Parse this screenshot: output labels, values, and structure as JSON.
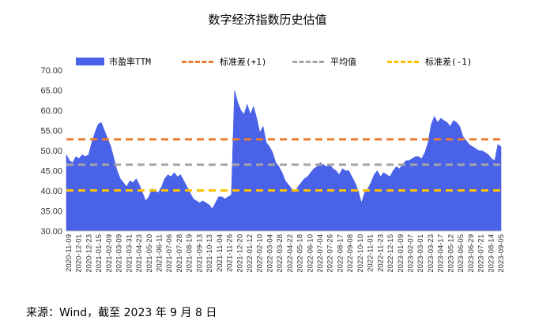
{
  "chart_data": {
    "type": "area",
    "title": "数字经济指数历史估值",
    "source_note": "来源：Wind，截至 2023 年 9 月 8 日",
    "ylim": [
      30,
      70
    ],
    "yticks": [
      "70.00",
      "65.00",
      "60.00",
      "55.00",
      "50.00",
      "45.00",
      "40.00",
      "35.00",
      "30.00"
    ],
    "x_tick_labels": [
      "2020-11-09",
      "2020-12-01",
      "2020-12-23",
      "2021-01-15",
      "2021-02-09",
      "2021-03-09",
      "2021-03-31",
      "2021-04-23",
      "2021-05-20",
      "2021-06-11",
      "2021-07-06",
      "2021-07-28",
      "2021-08-19",
      "2021-09-13",
      "2021-10-13",
      "2021-11-04",
      "2021-11-26",
      "2021-12-20",
      "2022-01-12",
      "2022-02-10",
      "2022-03-04",
      "2022-03-28",
      "2022-04-22",
      "2022-05-18",
      "2022-06-10",
      "2022-07-04",
      "2022-07-26",
      "2022-08-17",
      "2022-09-08",
      "2022-10-10",
      "2022-11-01",
      "2022-11-23",
      "2022-12-15",
      "2023-01-09",
      "2023-02-07",
      "2023-03-01",
      "2023-03-23",
      "2023-04-17",
      "2023-05-12",
      "2023-06-05",
      "2023-06-29",
      "2023-07-21",
      "2023-08-14",
      "2023-09-05"
    ],
    "series": [
      {
        "name": "市盈率TTM",
        "kind": "area",
        "color": "#4a62e8",
        "values": [
          49,
          47.5,
          47,
          48.5,
          48,
          49,
          48.5,
          49,
          52,
          54.5,
          56.5,
          57,
          55,
          53,
          51,
          48,
          45,
          43,
          42,
          41,
          42.5,
          42,
          43,
          41.5,
          39.5,
          37.5,
          38.5,
          40.5,
          40,
          39.5,
          41,
          43,
          44,
          43.5,
          44.5,
          43.5,
          44,
          42.5,
          41,
          39.5,
          38,
          37.5,
          37,
          37.5,
          37,
          36.5,
          35.5,
          37,
          38.5,
          38.5,
          38,
          38.5,
          39,
          65,
          62,
          60,
          59,
          61.5,
          59,
          61,
          58,
          54.5,
          56,
          52,
          51,
          49.5,
          47,
          46,
          44.5,
          42.5,
          41.5,
          40.5,
          39.5,
          41,
          42,
          43,
          43.5,
          44.5,
          45.5,
          46,
          47,
          46.5,
          46,
          46.5,
          45.5,
          45,
          44,
          45.5,
          45,
          45,
          43.5,
          42,
          40,
          37,
          39.5,
          40.5,
          42,
          44,
          45,
          43.5,
          44.5,
          44,
          43.5,
          45,
          46,
          45.5,
          46.5,
          47.5,
          47.5,
          48,
          48.5,
          48.5,
          48,
          49.5,
          52,
          56.5,
          58.5,
          57,
          58,
          57.5,
          57,
          56,
          57.5,
          57,
          56,
          53.5,
          52.5,
          51.5,
          51,
          50.5,
          50,
          50,
          49.5,
          49,
          48,
          47.5,
          51.5,
          51
        ]
      },
      {
        "name": "标准差(+1)",
        "kind": "dashed",
        "color": "#ed7d31",
        "value": 52.8
      },
      {
        "name": "平均值",
        "kind": "dashed",
        "color": "#a5a5a5",
        "value": 46.5
      },
      {
        "name": "标准差(-1)",
        "kind": "dashed",
        "color": "#ffc000",
        "value": 40.1
      }
    ],
    "legend_position": "top",
    "grid": false
  }
}
